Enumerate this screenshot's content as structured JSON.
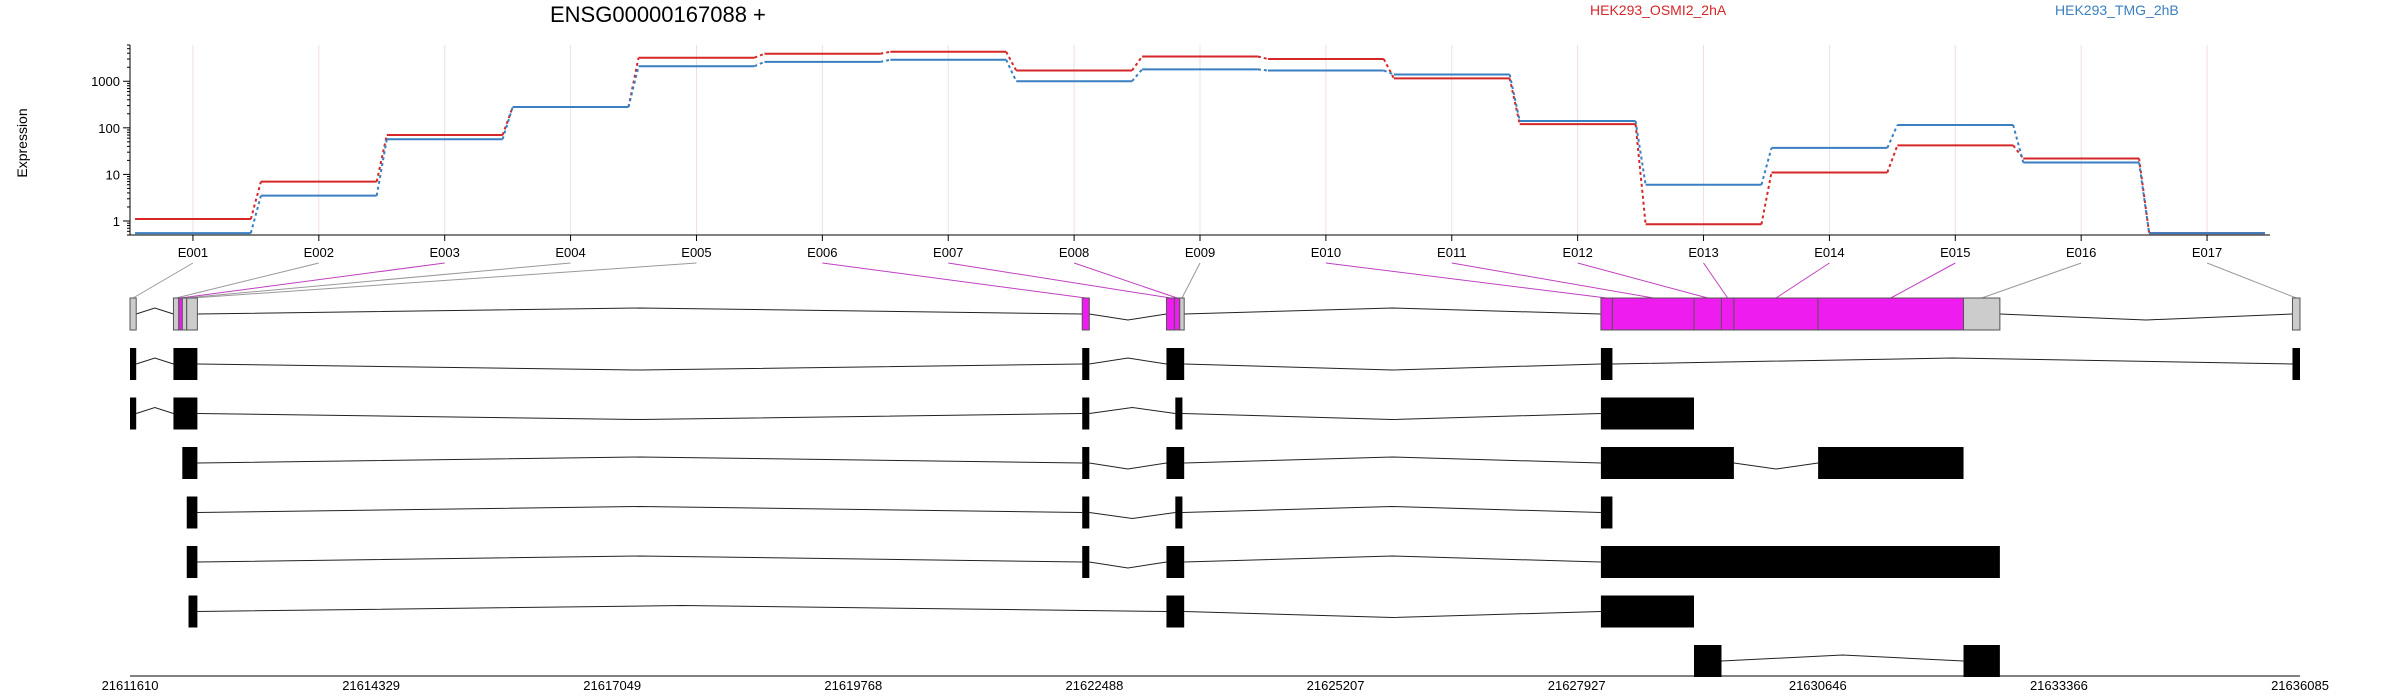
{
  "chart_data": {
    "type": "line",
    "title": "ENSG00000167088 +",
    "ylabel": "Expression",
    "yscale": "log",
    "ylim": [
      0.5,
      6000
    ],
    "yticks": [
      1,
      10,
      100,
      1000
    ],
    "ytick_labels": [
      "1",
      "10",
      "100",
      "1000"
    ],
    "categories": [
      "E001",
      "E002",
      "E003",
      "E004",
      "E005",
      "E006",
      "E007",
      "E008",
      "E009",
      "E010",
      "E011",
      "E012",
      "E013",
      "E014",
      "E015",
      "E016",
      "E017"
    ],
    "series": [
      {
        "name": "HEK293_OSMI2_2hA",
        "color": "#d62728",
        "values": [
          1.1,
          7,
          70,
          280,
          3200,
          3900,
          4300,
          1700,
          3400,
          3000,
          1150,
          120,
          0.85,
          11,
          42,
          22,
          0.55
        ]
      },
      {
        "name": "HEK293_TMG_2hB",
        "color": "#3a7fc1",
        "values": [
          0.55,
          3.5,
          57,
          280,
          2100,
          2600,
          2900,
          1000,
          1800,
          1700,
          1400,
          140,
          6,
          37,
          115,
          18,
          0.55
        ]
      }
    ],
    "genomic_axis": {
      "min": 21611610,
      "max": 21636085,
      "tick_labels": [
        "21611610",
        "21614329",
        "21617049",
        "21619768",
        "21622488",
        "21625207",
        "21627927",
        "21630646",
        "21633366",
        "21636085"
      ]
    },
    "exon_bins": [
      {
        "label": "E001",
        "start": 21611610,
        "end": 21611680,
        "significant": false
      },
      {
        "label": "E002",
        "start": 21612100,
        "end": 21612160,
        "significant": false
      },
      {
        "label": "E003",
        "start": 21612160,
        "end": 21612200,
        "significant": true
      },
      {
        "label": "E004",
        "start": 21612200,
        "end": 21612250,
        "significant": false
      },
      {
        "label": "E005",
        "start": 21612250,
        "end": 21612370,
        "significant": false
      },
      {
        "label": "E006",
        "start": 21622350,
        "end": 21622430,
        "significant": true
      },
      {
        "label": "E007",
        "start": 21623300,
        "end": 21623390,
        "significant": true
      },
      {
        "label": "E008",
        "start": 21623390,
        "end": 21623450,
        "significant": true
      },
      {
        "label": "E009",
        "start": 21623450,
        "end": 21623500,
        "significant": false
      },
      {
        "label": "E010",
        "start": 21628200,
        "end": 21628330,
        "significant": true
      },
      {
        "label": "E011",
        "start": 21628330,
        "end": 21629250,
        "significant": true
      },
      {
        "label": "E012",
        "start": 21629250,
        "end": 21629560,
        "significant": true
      },
      {
        "label": "E013",
        "start": 21629560,
        "end": 21629700,
        "significant": true
      },
      {
        "label": "E014",
        "start": 21629700,
        "end": 21630650,
        "significant": true
      },
      {
        "label": "E015",
        "start": 21630650,
        "end": 21632290,
        "significant": true
      },
      {
        "label": "E016",
        "start": 21632290,
        "end": 21632700,
        "significant": false
      },
      {
        "label": "E017",
        "start": 21636000,
        "end": 21636085,
        "significant": false
      }
    ],
    "transcripts": [
      [
        [
          21611610,
          21611680
        ],
        [
          21612100,
          21612370
        ],
        [
          21622350,
          21622430
        ],
        [
          21623300,
          21623500
        ],
        [
          21628200,
          21628330
        ],
        [
          21636000,
          21636085
        ]
      ],
      [
        [
          21611610,
          21611680
        ],
        [
          21612100,
          21612370
        ],
        [
          21622350,
          21622430
        ],
        [
          21623400,
          21623480
        ],
        [
          21628200,
          21629250
        ]
      ],
      [
        [
          21612200,
          21612370
        ],
        [
          21622350,
          21622430
        ],
        [
          21623300,
          21623500
        ],
        [
          21628200,
          21629700
        ],
        [
          21630650,
          21632290
        ]
      ],
      [
        [
          21612250,
          21612370
        ],
        [
          21622350,
          21622430
        ],
        [
          21623400,
          21623480
        ],
        [
          21628200,
          21628330
        ]
      ],
      [
        [
          21612250,
          21612370
        ],
        [
          21622350,
          21622430
        ],
        [
          21623300,
          21623500
        ],
        [
          21628200,
          21632700
        ]
      ],
      [
        [
          21612270,
          21612370
        ],
        [
          21623300,
          21623500
        ],
        [
          21628200,
          21629250
        ]
      ],
      [
        [
          21629250,
          21629560
        ],
        [
          21632290,
          21632700
        ]
      ]
    ]
  }
}
